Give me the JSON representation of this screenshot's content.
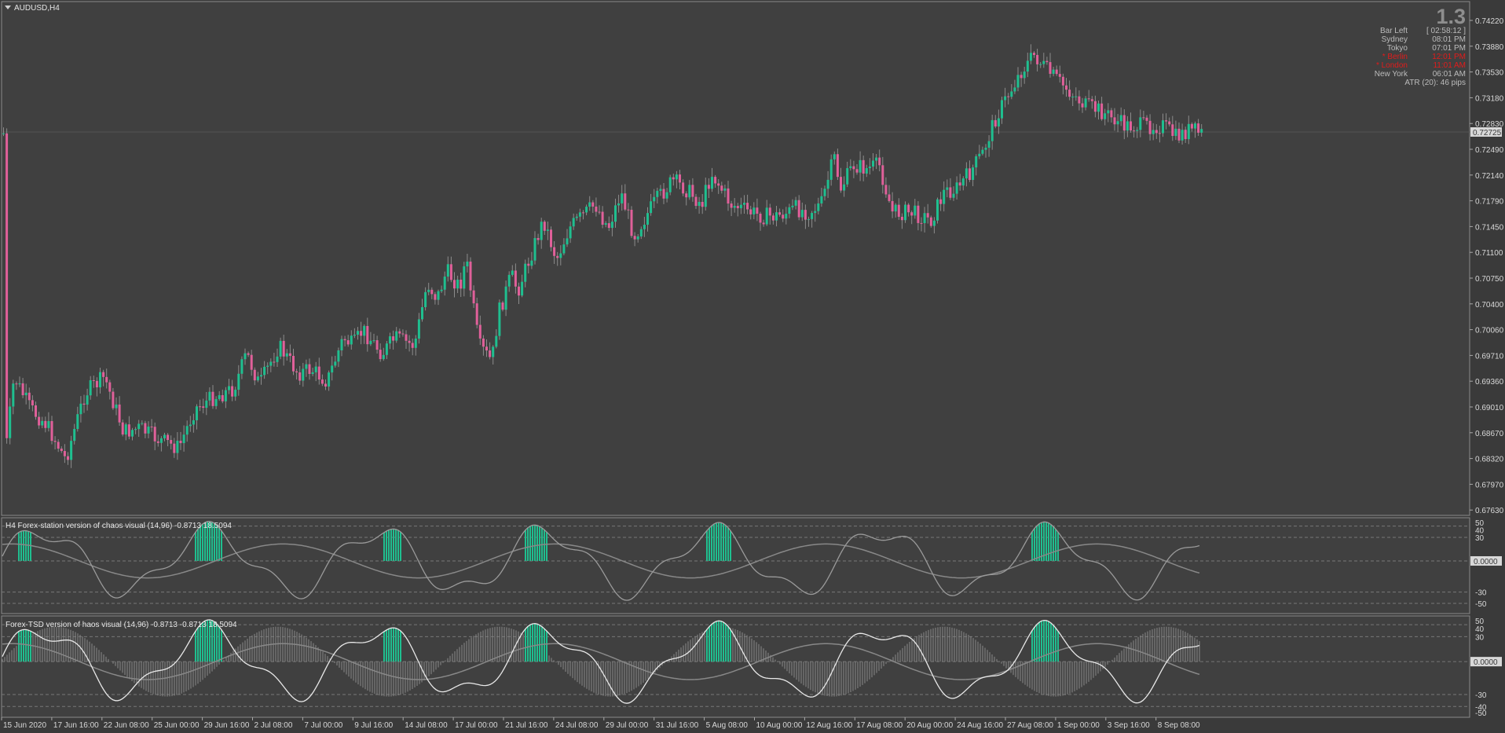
{
  "window": {
    "symbol_label": "AUDUSD,H4",
    "spread_value": "1.3"
  },
  "info_panel": {
    "rows": [
      {
        "label": "Bar Left",
        "value": "[ 02:58:12 ]",
        "highlight": false
      },
      {
        "label": "Sydney",
        "value": "08:01 PM",
        "highlight": false
      },
      {
        "label": "Tokyo",
        "value": "07:01 PM",
        "highlight": false
      },
      {
        "label": "* Berlin",
        "value": "12:01 PM",
        "highlight": true
      },
      {
        "label": "* London",
        "value": "11:01 AM",
        "highlight": true
      },
      {
        "label": "New York",
        "value": "06:01 AM",
        "highlight": false
      }
    ],
    "atr": "ATR (20): 46 pips"
  },
  "main_chart": {
    "price_labels": [
      "0.74220",
      "0.73880",
      "0.73530",
      "0.73180",
      "0.72830",
      "0.72490",
      "0.72140",
      "0.71790",
      "0.71450",
      "0.71100",
      "0.70750",
      "0.70400",
      "0.70060",
      "0.69710",
      "0.69360",
      "0.69010",
      "0.68670",
      "0.68320",
      "0.67970",
      "0.67630"
    ],
    "current_price": "0.72725",
    "colors": {
      "bull": "#1fbf8f",
      "bear": "#e0609a",
      "background": "#3f3f3f"
    }
  },
  "indicator1": {
    "title": "H4 Forex-station version of chaos visual (14,96) -0.8713 18.5094",
    "scale_labels": [
      "50",
      "40",
      "30",
      "0.0000",
      "-30",
      "-50"
    ]
  },
  "indicator2": {
    "title": "Forex-TSD version of haos visual (14,96) -0.8713 -0.8713 18.5094",
    "scale_labels": [
      "50",
      "40",
      "30",
      "0.0000",
      "-30",
      "-40",
      "-50"
    ]
  },
  "time_axis": {
    "labels": [
      "15 Jun 2020",
      "17 Jun 16:00",
      "22 Jun 08:00",
      "25 Jun 00:00",
      "29 Jun 16:00",
      "2 Jul 08:00",
      "7 Jul 00:00",
      "9 Jul 16:00",
      "14 Jul 08:00",
      "17 Jul 00:00",
      "21 Jul 16:00",
      "24 Jul 08:00",
      "29 Jul 00:00",
      "31 Jul 16:00",
      "5 Aug 08:00",
      "10 Aug 00:00",
      "12 Aug 16:00",
      "17 Aug 08:00",
      "20 Aug 00:00",
      "24 Aug 16:00",
      "27 Aug 08:00",
      "1 Sep 00:00",
      "3 Sep 16:00",
      "8 Sep 08:00"
    ]
  }
}
